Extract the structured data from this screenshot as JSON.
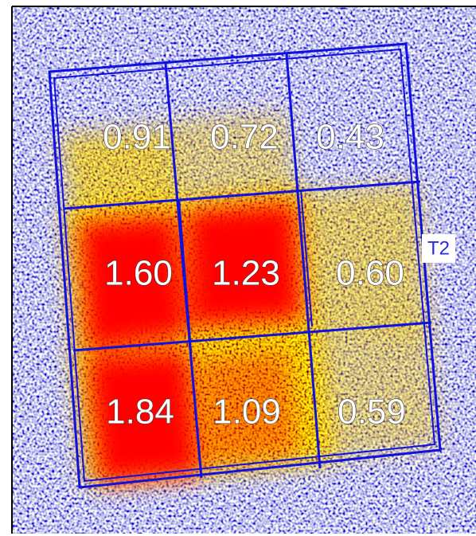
{
  "grid": {
    "rows": [
      [
        "0.91",
        "0.72",
        "0.43"
      ],
      [
        "1.60",
        "1.23",
        "0.60"
      ],
      [
        "1.84",
        "1.09",
        "0.59"
      ]
    ]
  },
  "label": "T2"
}
